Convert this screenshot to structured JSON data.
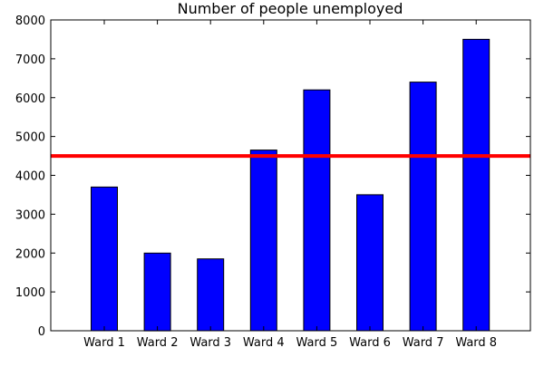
{
  "chart_data": {
    "type": "bar",
    "title": "Number of people unemployed",
    "xlabel": "",
    "ylabel": "",
    "categories": [
      "Ward 1",
      "Ward 2",
      "Ward 3",
      "Ward 4",
      "Ward 5",
      "Ward 6",
      "Ward 7",
      "Ward 8"
    ],
    "values": [
      3700,
      2000,
      1850,
      4650,
      6200,
      3500,
      6400,
      7500
    ],
    "ylim": [
      0,
      8000
    ],
    "yticks": [
      0,
      1000,
      2000,
      3000,
      4000,
      5000,
      6000,
      7000,
      8000
    ],
    "reference_line": {
      "y": 4500,
      "color": "#ff0000"
    },
    "bar_color": "#0000ff",
    "grid": false,
    "legend": "none"
  }
}
